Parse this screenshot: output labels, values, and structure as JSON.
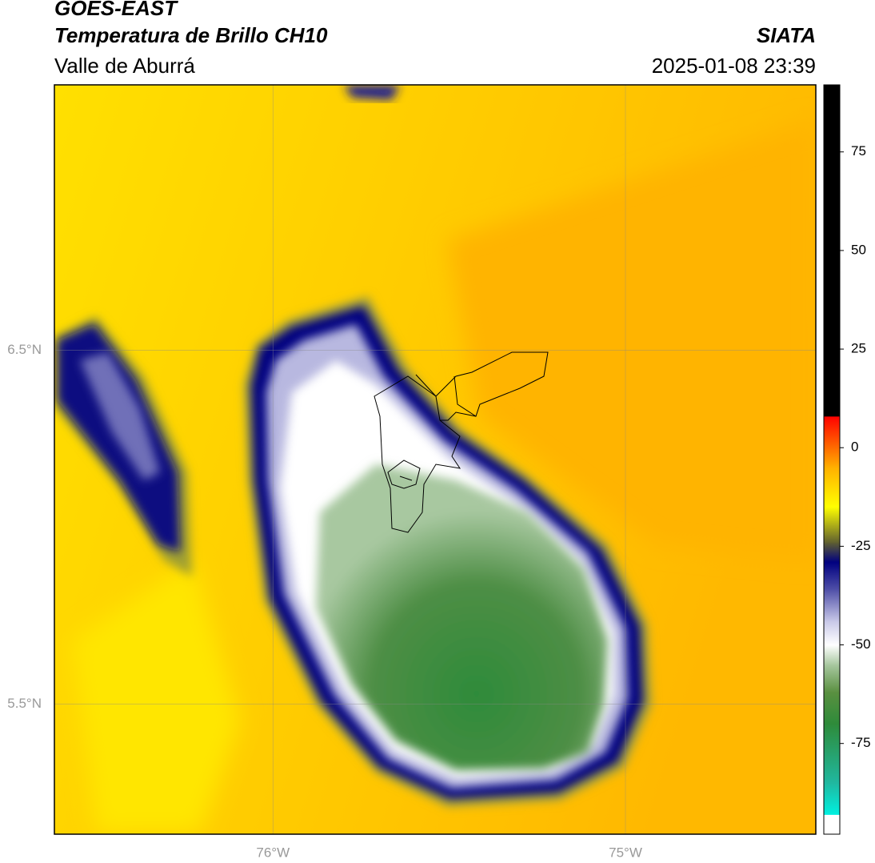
{
  "header": {
    "title": "GOES-EAST",
    "subtitle": "Temperatura de Brillo CH10",
    "region": "Valle de Aburrá",
    "source": "SIATA",
    "timestamp": "2025-01-08 23:39"
  },
  "map": {
    "xlim": [
      -76.62,
      -74.46
    ],
    "ylim": [
      5.133,
      7.25
    ],
    "xticks": [
      {
        "value": -76,
        "label": "76°W"
      },
      {
        "value": -75,
        "label": "75°W"
      }
    ],
    "yticks": [
      {
        "value": 6.5,
        "label": "6.5°N"
      },
      {
        "value": 5.5,
        "label": "5.5°N"
      }
    ],
    "grid": true
  },
  "colorbar": {
    "lim": [
      -98,
      92
    ],
    "ticks": [
      75,
      50,
      25,
      0,
      -25,
      -50,
      -75
    ],
    "stops": [
      {
        "value": -98,
        "color": "#ffffff"
      },
      {
        "value": -93,
        "color": "#ffffff"
      },
      {
        "value": -93,
        "color": "#00f0e0"
      },
      {
        "value": -85,
        "color": "#20b8a0"
      },
      {
        "value": -70,
        "color": "#2e8b3a"
      },
      {
        "value": -62,
        "color": "#5a9040"
      },
      {
        "value": -55,
        "color": "#a8c8a0"
      },
      {
        "value": -50,
        "color": "#ffffff"
      },
      {
        "value": -44,
        "color": "#c8c8e8"
      },
      {
        "value": -36,
        "color": "#5050a8"
      },
      {
        "value": -29,
        "color": "#000080"
      },
      {
        "value": -24,
        "color": "#606030"
      },
      {
        "value": -15,
        "color": "#ffff00"
      },
      {
        "value": -5,
        "color": "#ffb000"
      },
      {
        "value": 8,
        "color": "#ff0000"
      },
      {
        "value": 8,
        "color": "#000000"
      },
      {
        "value": 92,
        "color": "#000000"
      }
    ]
  }
}
